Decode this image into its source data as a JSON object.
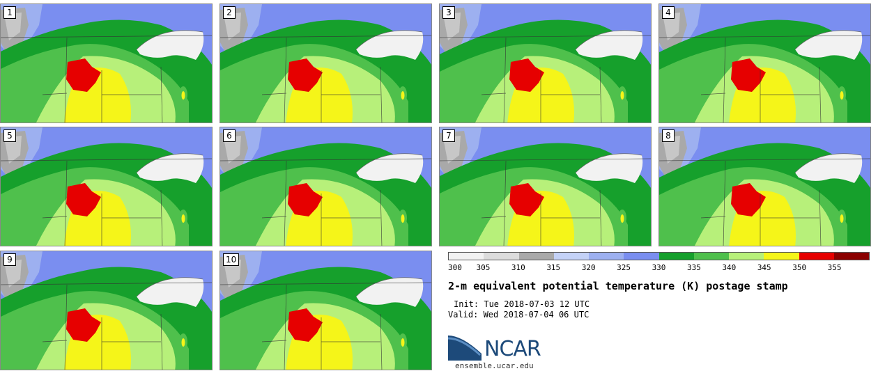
{
  "panels": [
    {
      "label": "1"
    },
    {
      "label": "2"
    },
    {
      "label": "3"
    },
    {
      "label": "4"
    },
    {
      "label": "5"
    },
    {
      "label": "6"
    },
    {
      "label": "7"
    },
    {
      "label": "8"
    },
    {
      "label": "9"
    },
    {
      "label": "10"
    }
  ],
  "legend": {
    "ticks": [
      "300",
      "305",
      "310",
      "315",
      "320",
      "325",
      "330",
      "335",
      "340",
      "345",
      "350",
      "355"
    ],
    "colors": [
      "#f2f2f2",
      "#dcdcdc",
      "#a9a9a9",
      "#c4d2f7",
      "#9db0f0",
      "#7a8ef0",
      "#16a02c",
      "#4fc04c",
      "#b7f07a",
      "#f5f519",
      "#e60000",
      "#8b0000"
    ]
  },
  "title": "2-m equivalent potential temperature (K) postage stamp",
  "init": "Init: Tue 2018-07-03 12 UTC",
  "valid": "Valid: Wed 2018-07-04 06 UTC",
  "logo": {
    "text": "NCAR",
    "site": "ensemble.ucar.edu"
  }
}
